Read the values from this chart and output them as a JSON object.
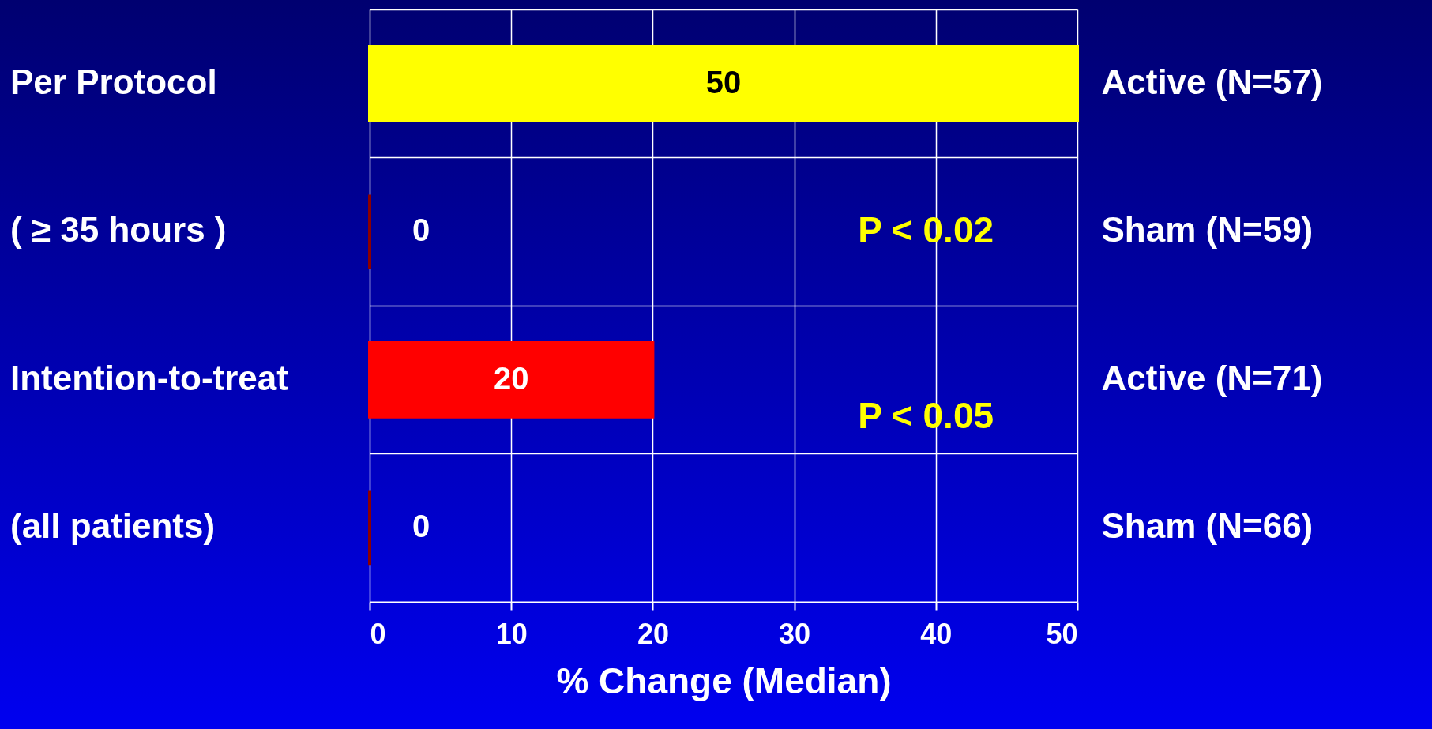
{
  "chart_data": {
    "type": "bar",
    "orientation": "horizontal",
    "categories": [
      "Active (N=57)",
      "Sham (N=59)",
      "Active (N=71)",
      "Sham (N=66)"
    ],
    "values": [
      50,
      0,
      20,
      0
    ],
    "colors": [
      "#ffff00",
      "#8b0000",
      "#ff0000",
      "#8b0000"
    ],
    "data_labels": true,
    "xlim": [
      0,
      50
    ],
    "xticks": [
      0,
      10,
      20,
      30,
      40,
      50
    ],
    "xlabel": "% Change (Median)",
    "grid": true,
    "annotations": [
      "Per Protocol",
      "( ≥ 35 hours )",
      "Intention-to-treat",
      "(all patients)",
      "P < 0.02",
      "P < 0.05"
    ]
  }
}
